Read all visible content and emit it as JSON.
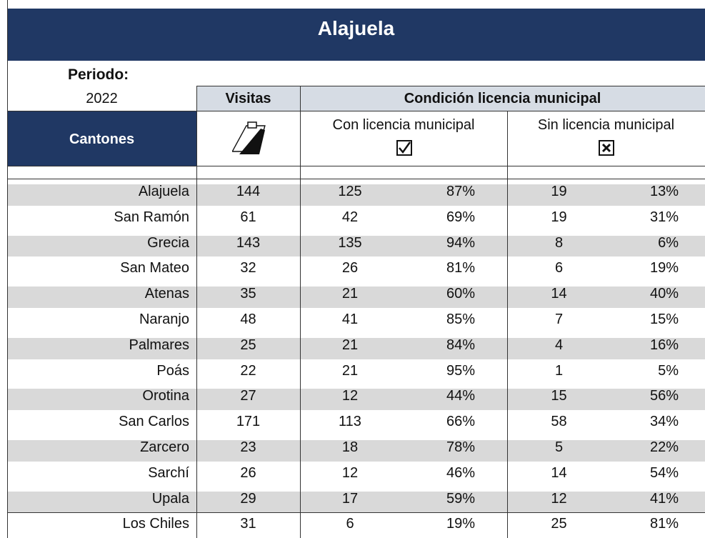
{
  "title": "Alajuela",
  "period_label": "Periodo:",
  "period": "2022",
  "headers": {
    "visits": "Visitas",
    "condition": "Condición licencia municipal",
    "cantons": "Cantones",
    "with_license": "Con licencia municipal",
    "without_license": "Sin licencia municipal"
  },
  "rows": [
    [
      "Alajuela",
      "144",
      "125",
      "87%",
      "19",
      "13%"
    ],
    [
      "San Ramón",
      "61",
      "42",
      "69%",
      "19",
      "31%"
    ],
    [
      "Grecia",
      "143",
      "135",
      "94%",
      "8",
      "6%"
    ],
    [
      "San Mateo",
      "32",
      "26",
      "81%",
      "6",
      "19%"
    ],
    [
      "Atenas",
      "35",
      "21",
      "60%",
      "14",
      "40%"
    ],
    [
      "Naranjo",
      "48",
      "41",
      "85%",
      "7",
      "15%"
    ],
    [
      "Palmares",
      "25",
      "21",
      "84%",
      "4",
      "16%"
    ],
    [
      "Poás",
      "22",
      "21",
      "95%",
      "1",
      "5%"
    ],
    [
      "Orotina",
      "27",
      "12",
      "44%",
      "15",
      "56%"
    ],
    [
      "San Carlos",
      "171",
      "113",
      "66%",
      "58",
      "34%"
    ],
    [
      "Zarcero",
      "23",
      "18",
      "78%",
      "5",
      "22%"
    ],
    [
      "Sarchí",
      "26",
      "12",
      "46%",
      "14",
      "54%"
    ],
    [
      "Upala",
      "29",
      "17",
      "59%",
      "12",
      "41%"
    ],
    [
      "Los Chiles",
      "31",
      "6",
      "19%",
      "25",
      "81%"
    ]
  ]
}
